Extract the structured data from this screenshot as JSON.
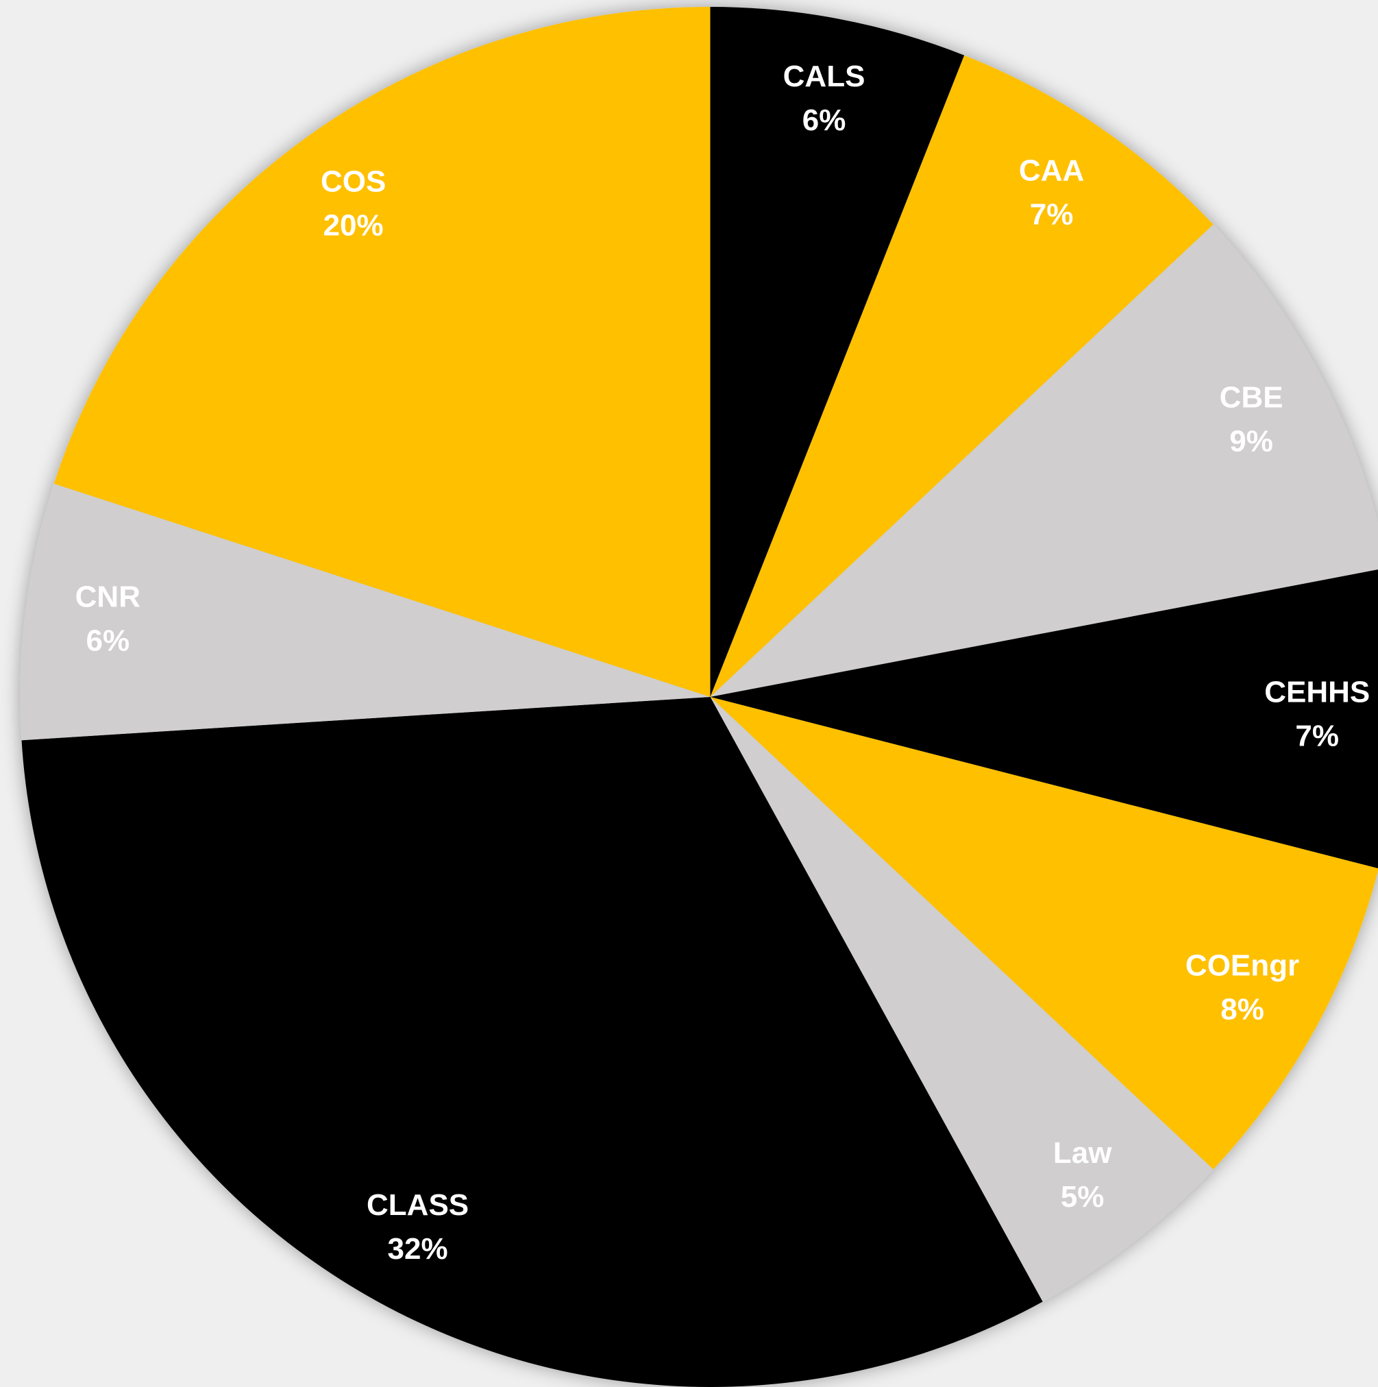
{
  "chart_data": {
    "type": "pie",
    "categories": [
      "CALS",
      "CAA",
      "CBE",
      "CEHHS",
      "COEngr",
      "Law",
      "CLASS",
      "CNR",
      "COS"
    ],
    "values": [
      6,
      7,
      9,
      7,
      8,
      5,
      32,
      6,
      20
    ],
    "value_labels": [
      "6%",
      "7%",
      "9%",
      "7%",
      "8%",
      "5%",
      "32%",
      "6%",
      "20%"
    ],
    "colors": [
      "#000000",
      "#FFC000",
      "#D0CECE",
      "#000000",
      "#FFC000",
      "#D0CECE",
      "#000000",
      "#D0CECE",
      "#FFC000"
    ]
  }
}
